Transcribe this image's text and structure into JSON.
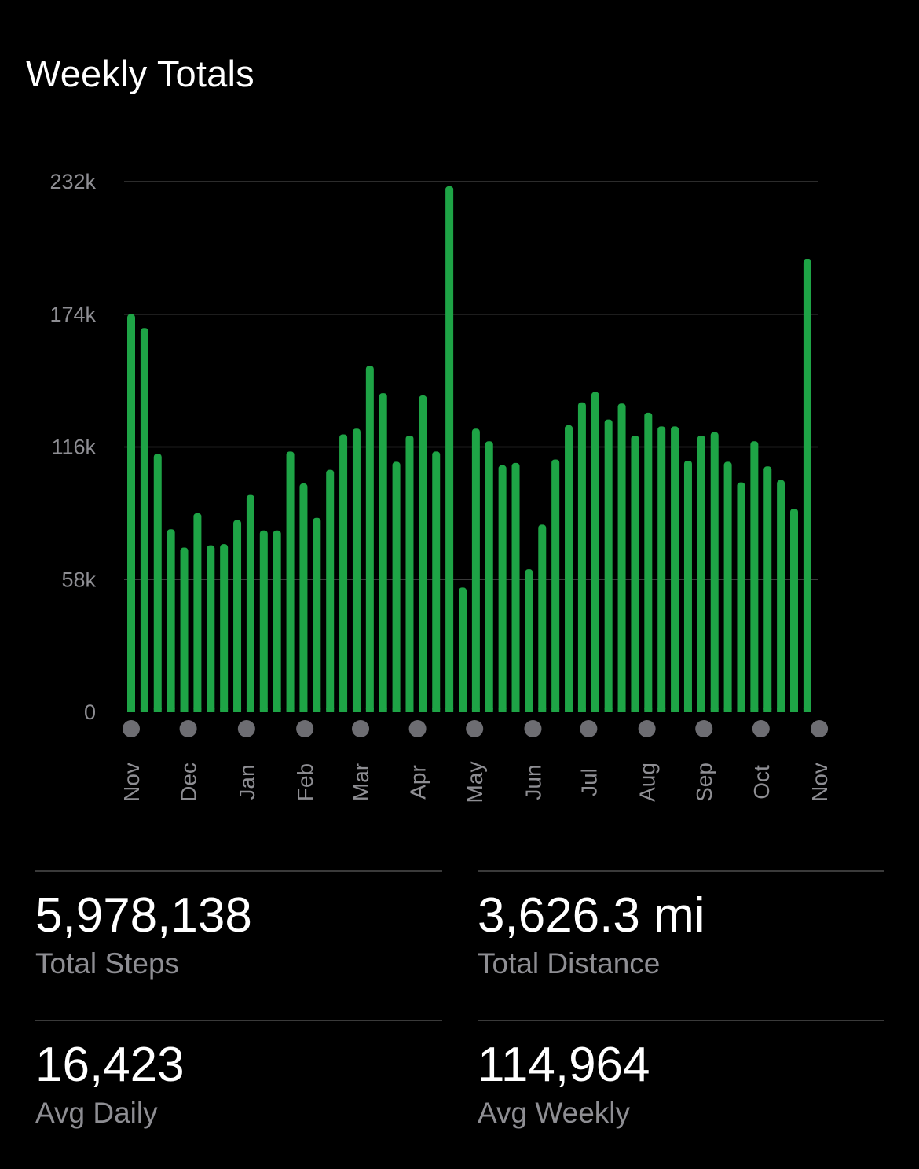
{
  "header": {
    "title": "Weekly Totals"
  },
  "colors": {
    "background": "#000000",
    "bar": "#1ea446",
    "grid": "#3a3a3a",
    "tick_text": "#8e8e93",
    "month_dot": "#6d6d72"
  },
  "chart_data": {
    "type": "bar",
    "title": "Weekly Totals",
    "xlabel": "",
    "ylabel": "",
    "ylim": [
      0,
      232000
    ],
    "y_ticks": [
      0,
      58000,
      116000,
      174000,
      232000
    ],
    "y_tick_labels": [
      "0",
      "58k",
      "116k",
      "174k",
      "232k"
    ],
    "grid": true,
    "month_labels": [
      "Nov",
      "Dec",
      "Jan",
      "Feb",
      "Mar",
      "Apr",
      "May",
      "Jun",
      "Jul",
      "Aug",
      "Sep",
      "Oct",
      "Nov"
    ],
    "month_start_week": [
      0,
      4.3,
      8.7,
      13.1,
      17.3,
      21.6,
      25.9,
      30.3,
      34.5,
      38.9,
      43.2,
      47.5,
      51.9
    ],
    "values": [
      174000,
      168000,
      113000,
      80000,
      72000,
      87000,
      73000,
      73500,
      84000,
      95000,
      79500,
      79500,
      114000,
      100000,
      85000,
      106000,
      121500,
      124000,
      151500,
      139500,
      109500,
      121000,
      138500,
      114000,
      230000,
      54500,
      124000,
      118500,
      108000,
      109000,
      62500,
      82000,
      110500,
      125500,
      135500,
      140000,
      128000,
      135000,
      121000,
      131000,
      125000,
      125000,
      110000,
      121000,
      122500,
      109500,
      100500,
      118500,
      107500,
      101500,
      89000,
      198000
    ]
  },
  "stats": {
    "total_steps": {
      "value": "5,978,138",
      "label": "Total Steps"
    },
    "total_distance": {
      "value": "3,626.3 mi",
      "label": "Total Distance"
    },
    "avg_daily": {
      "value": "16,423",
      "label": "Avg Daily"
    },
    "avg_weekly": {
      "value": "114,964",
      "label": "Avg Weekly"
    }
  }
}
